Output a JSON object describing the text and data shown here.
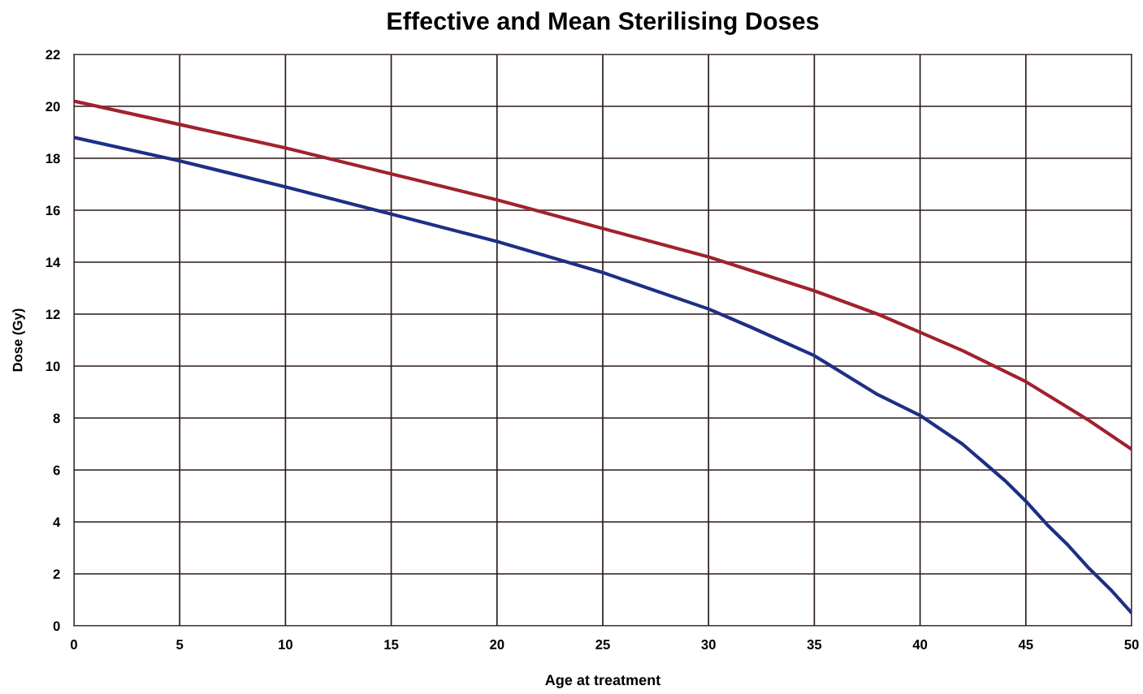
{
  "chart_data": {
    "type": "line",
    "title": "Effective and Mean Sterilising Doses",
    "xlabel": "Age at treatment",
    "ylabel": "Dose (Gy)",
    "xlim": [
      0,
      50
    ],
    "xticks": [
      0,
      5,
      10,
      15,
      20,
      25,
      30,
      35,
      40,
      45,
      50
    ],
    "ylim": [
      0,
      22
    ],
    "yticks": [
      0,
      2,
      4,
      6,
      8,
      10,
      12,
      14,
      16,
      18,
      20,
      22
    ],
    "grid": true,
    "series": [
      {
        "color": "#a0222e",
        "x": [
          0,
          5,
          10,
          15,
          20,
          25,
          30,
          35,
          38,
          40,
          42,
          44,
          45,
          46,
          48,
          50
        ],
        "values": [
          20.2,
          19.3,
          18.4,
          17.4,
          16.4,
          15.3,
          14.2,
          12.9,
          12.0,
          11.3,
          10.6,
          9.8,
          9.4,
          8.9,
          7.9,
          6.8
        ]
      },
      {
        "color": "#1f2f86",
        "x": [
          0,
          5,
          10,
          15,
          20,
          25,
          30,
          32,
          35,
          37,
          38,
          40,
          42,
          43,
          44,
          45,
          46,
          47,
          48,
          49,
          50
        ],
        "values": [
          18.8,
          17.9,
          16.9,
          15.85,
          14.8,
          13.6,
          12.2,
          11.5,
          10.4,
          9.4,
          8.9,
          8.1,
          7.0,
          6.3,
          5.6,
          4.8,
          3.9,
          3.1,
          2.2,
          1.4,
          0.5
        ]
      }
    ]
  }
}
